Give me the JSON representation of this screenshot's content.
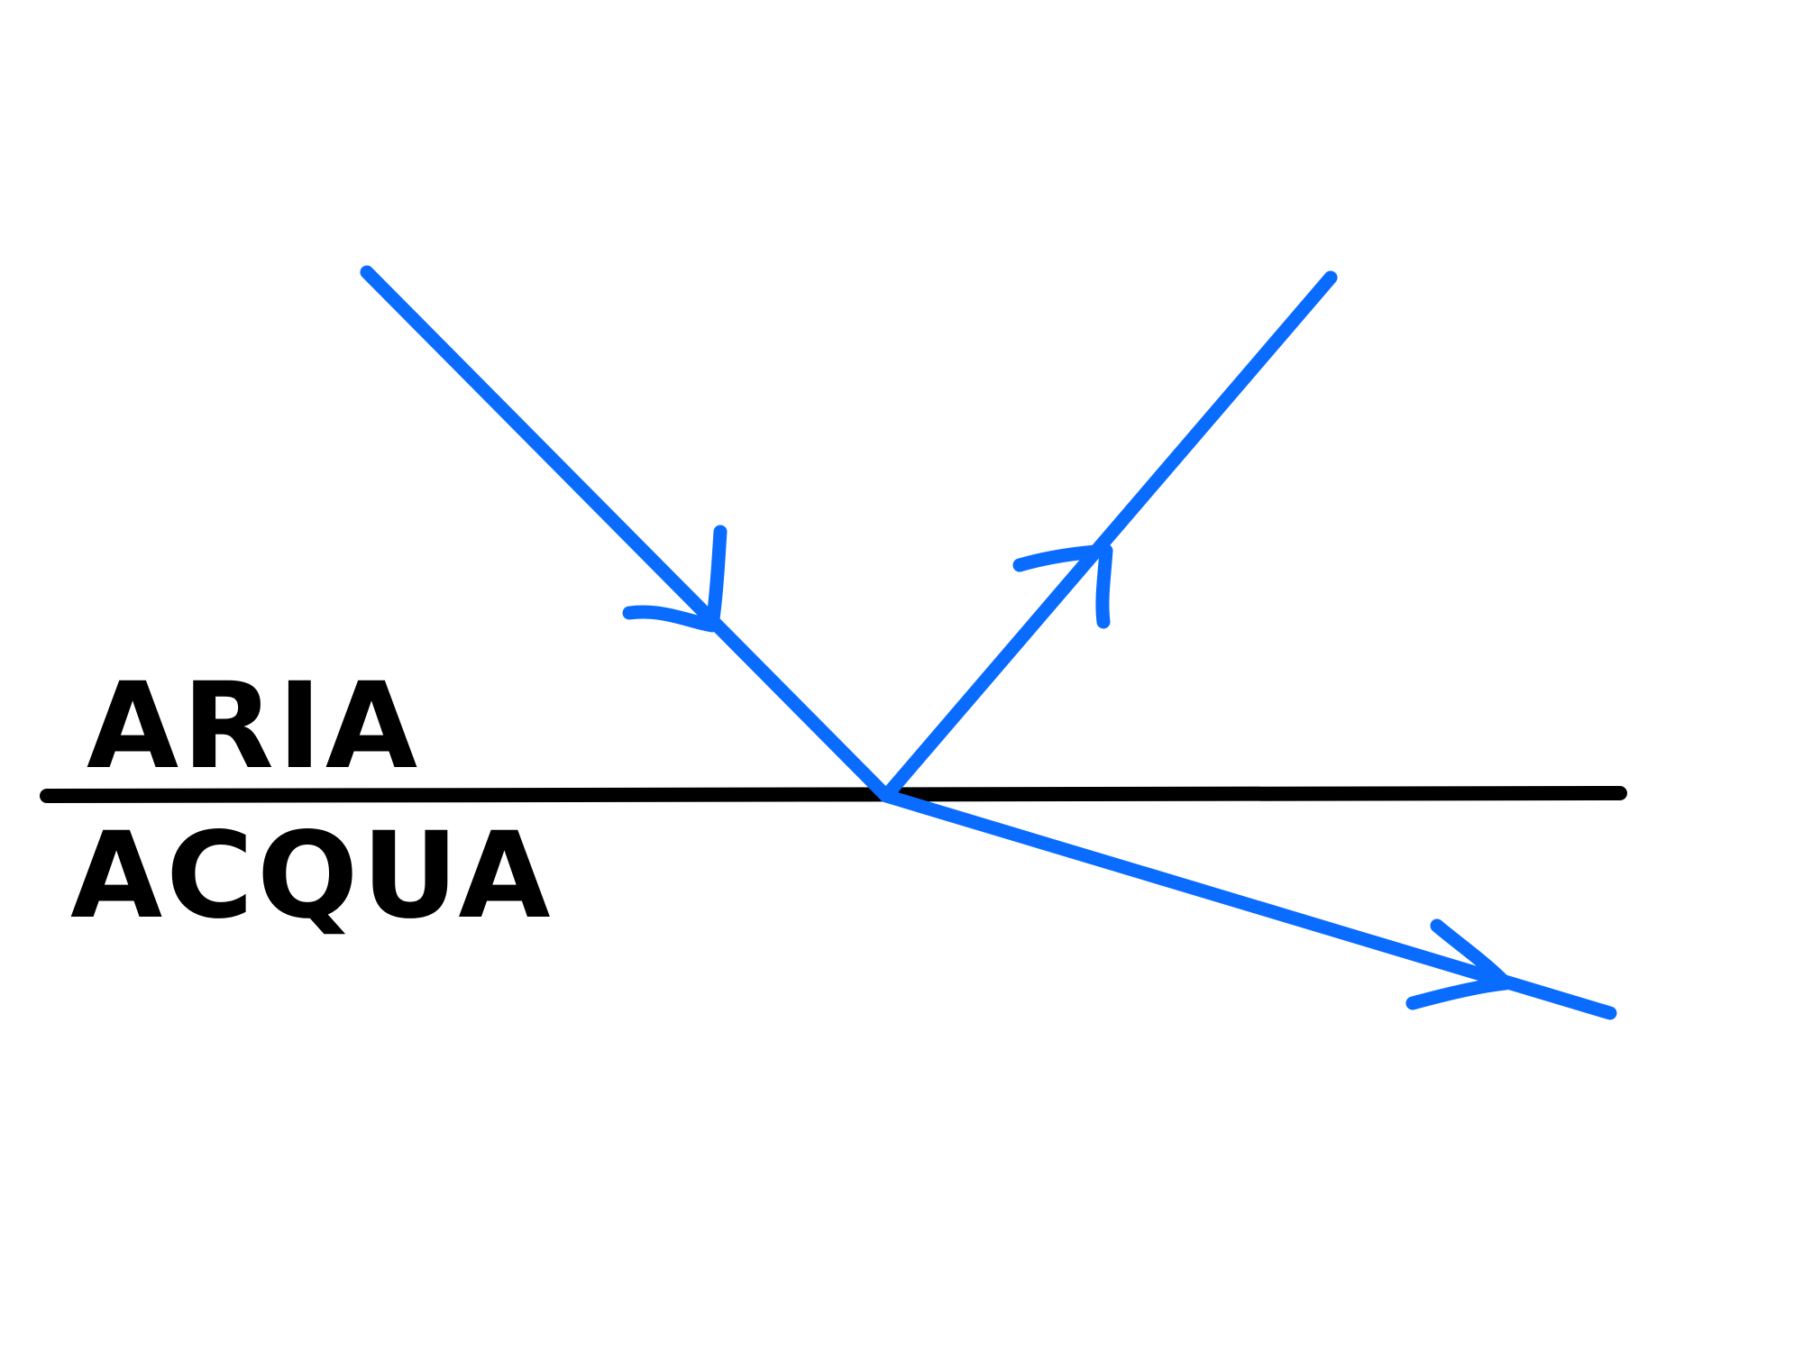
{
  "diagram": {
    "colors": {
      "ray": "#0a6cff",
      "boundary": "#000000",
      "label": "#000000",
      "background": "#ffffff"
    },
    "labels": {
      "upper_medium": "ARIA",
      "lower_medium": "ACQUA"
    },
    "rays": [
      {
        "role": "incident",
        "direction": "toward-interface"
      },
      {
        "role": "reflected",
        "direction": "away-from-interface"
      },
      {
        "role": "refracted",
        "direction": "away-from-interface"
      }
    ]
  }
}
